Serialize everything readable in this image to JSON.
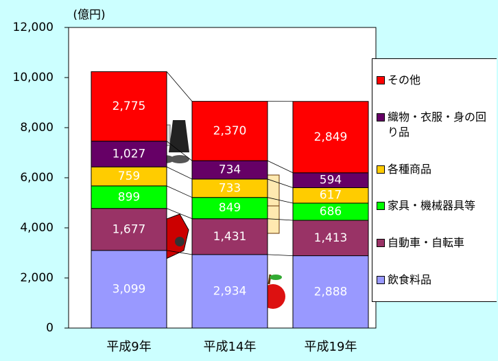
{
  "chart_data": {
    "type": "stacked-bar",
    "y_label": "(億円)",
    "categories": [
      "平成9年",
      "平成14年",
      "平成19年"
    ],
    "series": [
      {
        "name": "飲食料品",
        "color": "#9999ff",
        "values": [
          3099,
          2934,
          2888
        ],
        "value_labels": [
          "3,099",
          "2,934",
          "2,888"
        ]
      },
      {
        "name": "自動車・自転車",
        "color": "#993366",
        "values": [
          1677,
          1431,
          1413
        ],
        "value_labels": [
          "1,677",
          "1,431",
          "1,413"
        ]
      },
      {
        "name": "家具・機械器具等",
        "color": "#00ff00",
        "values": [
          899,
          849,
          686
        ],
        "value_labels": [
          "899",
          "849",
          "686"
        ]
      },
      {
        "name": "各種商品",
        "color": "#ffcc00",
        "values": [
          759,
          733,
          617
        ],
        "value_labels": [
          "759",
          "733",
          "617"
        ]
      },
      {
        "name": "織物・衣服・身の回り品",
        "color": "#660066",
        "values": [
          1027,
          734,
          594
        ],
        "value_labels": [
          "1,027",
          "734",
          "594"
        ]
      },
      {
        "name": "その他",
        "color": "#ff0000",
        "values": [
          2775,
          2370,
          2849
        ],
        "value_labels": [
          "2,775",
          "2,370",
          "2,849"
        ]
      }
    ],
    "ylim": [
      0,
      12000
    ],
    "yticks": [
      0,
      {
        "value": 2000,
        "label": "2,000"
      },
      {
        "value": 4000,
        "label": "4,000"
      },
      {
        "value": 6000,
        "label": "6,000"
      },
      {
        "value": 8000,
        "label": "8,000"
      },
      {
        "value": 10000,
        "label": "10,000"
      },
      {
        "value": 12000,
        "label": "12,000"
      }
    ],
    "legend": "right"
  }
}
